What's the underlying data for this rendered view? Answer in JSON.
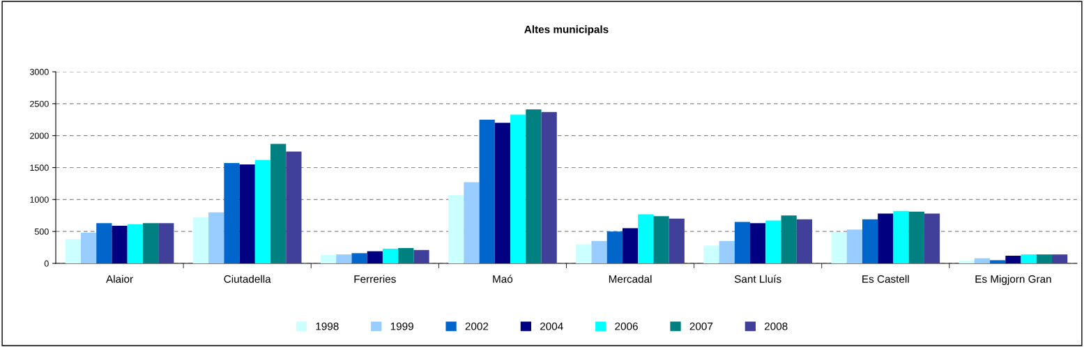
{
  "chart_data": {
    "type": "bar",
    "title": "Altes municipals",
    "categories": [
      "Alaior",
      "Ciutadella",
      "Ferreries",
      "Maó",
      "Mercadal",
      "Sant Lluís",
      "Es Castell",
      "Es Migjorn Gran"
    ],
    "series": [
      {
        "name": "1998",
        "color": "#ccffff",
        "values": [
          380,
          720,
          130,
          1070,
          300,
          280,
          490,
          40
        ]
      },
      {
        "name": "1999",
        "color": "#99ccff",
        "values": [
          480,
          800,
          140,
          1270,
          350,
          350,
          530,
          80
        ]
      },
      {
        "name": "2002",
        "color": "#0066cc",
        "values": [
          630,
          1570,
          160,
          2250,
          500,
          650,
          690,
          50
        ]
      },
      {
        "name": "2004",
        "color": "#000080",
        "values": [
          590,
          1550,
          190,
          2200,
          550,
          630,
          780,
          120
        ]
      },
      {
        "name": "2006",
        "color": "#00ffff",
        "values": [
          610,
          1620,
          230,
          2330,
          770,
          670,
          820,
          140
        ]
      },
      {
        "name": "2007",
        "color": "#008080",
        "values": [
          630,
          1870,
          240,
          2410,
          740,
          750,
          810,
          140
        ]
      },
      {
        "name": "2008",
        "color": "#40409a",
        "values": [
          630,
          1750,
          210,
          2370,
          700,
          690,
          780,
          140
        ]
      }
    ],
    "ylim": [
      0,
      3000
    ],
    "yticks": [
      0,
      500,
      1000,
      1500,
      2000,
      2500,
      3000
    ],
    "grid": "y",
    "legend": "bottom"
  }
}
